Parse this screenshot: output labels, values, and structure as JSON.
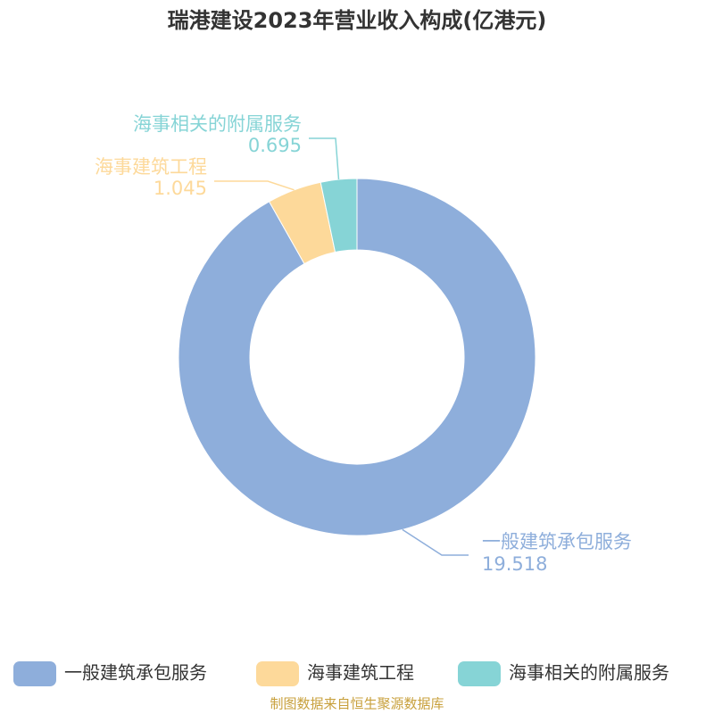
{
  "chart_data": {
    "type": "donut",
    "title": "瑞港建设2023年营业收入构成(亿港元)",
    "categories": [
      "一般建筑承包服务",
      "海事建筑工程",
      "海事相关的附属服务"
    ],
    "values": [
      19.518,
      1.045,
      0.695
    ],
    "colors": [
      "#8eaedb",
      "#fdd99a",
      "#86d4d6"
    ],
    "source": "制图数据来自恒生聚源数据库"
  }
}
